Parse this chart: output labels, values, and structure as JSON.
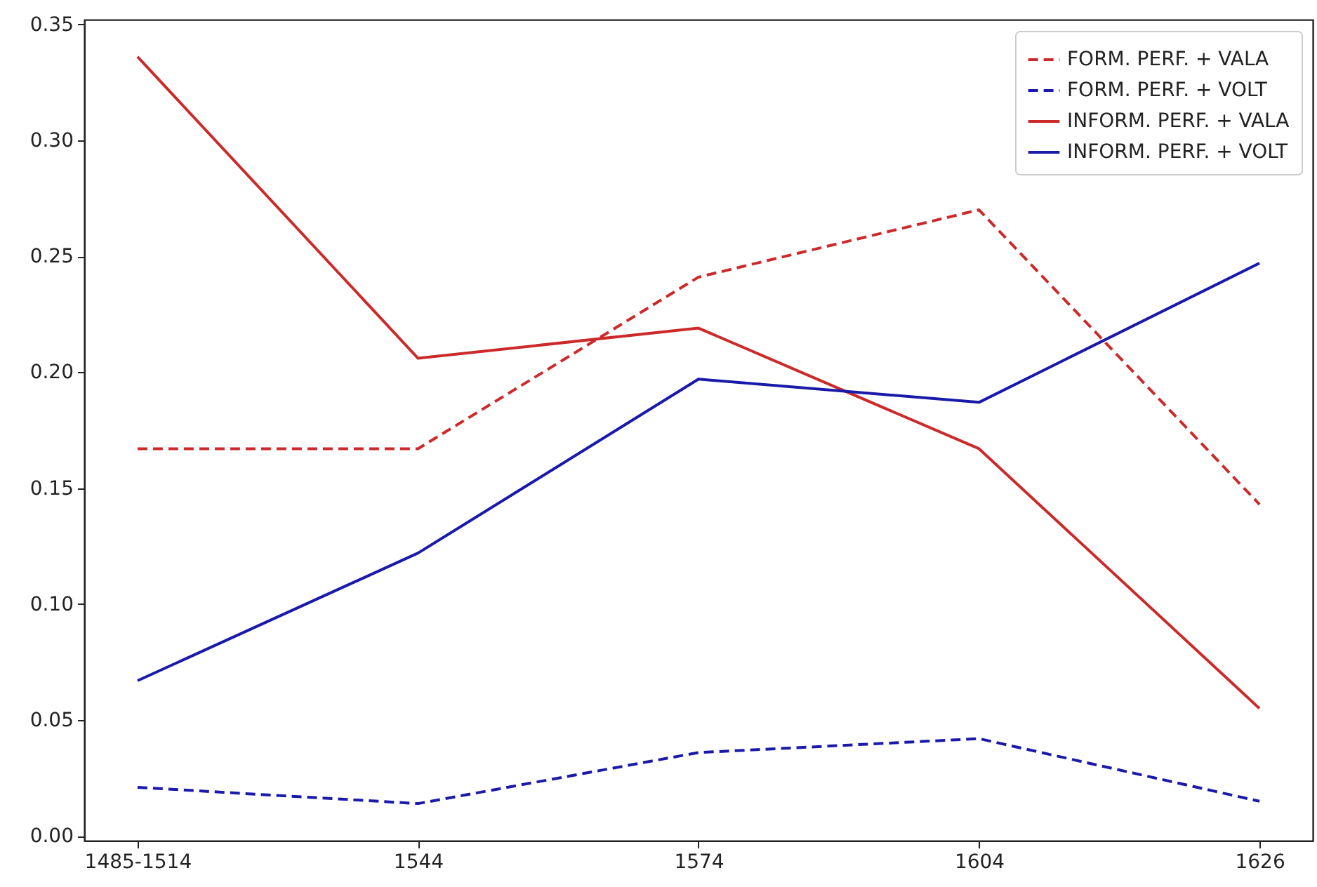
{
  "chart_data": {
    "type": "line",
    "categories": [
      "1485-1514",
      "1544",
      "1574",
      "1604",
      "1626"
    ],
    "series": [
      {
        "name": "FORM. PERF. + VALA",
        "color": "#cc2a2a",
        "line_style": "dashed",
        "values": [
          0.167,
          0.167,
          0.241,
          0.27,
          0.143
        ]
      },
      {
        "name": "FORM. PERF. + VOLT",
        "color": "#1a1aaa",
        "line_style": "dashed",
        "values": [
          0.021,
          0.014,
          0.036,
          0.042,
          0.015
        ]
      },
      {
        "name": "INFORM. PERF. + VALA",
        "color": "#cc2a2a",
        "line_style": "solid",
        "values": [
          0.336,
          0.206,
          0.219,
          0.167,
          0.055
        ]
      },
      {
        "name": "INFORM. PERF. + VOLT",
        "color": "#1a1aaa",
        "line_style": "solid",
        "values": [
          0.067,
          0.122,
          0.197,
          0.187,
          0.247
        ]
      }
    ],
    "ylim": [
      -0.002,
      0.352
    ],
    "yticks": [
      {
        "value": 0,
        "label": "0.00"
      },
      {
        "value": 0.05,
        "label": "0.05"
      },
      {
        "value": 0.1,
        "label": "0.10"
      },
      {
        "value": 0.15,
        "label": "0.15"
      },
      {
        "value": 0.2,
        "label": "0.20"
      },
      {
        "value": 0.25,
        "label": "0.25"
      },
      {
        "value": 0.3,
        "label": "0.30"
      },
      {
        "value": 0.35,
        "label": "0.35"
      }
    ],
    "grid": false,
    "legend": "top right",
    "marker": "none"
  }
}
